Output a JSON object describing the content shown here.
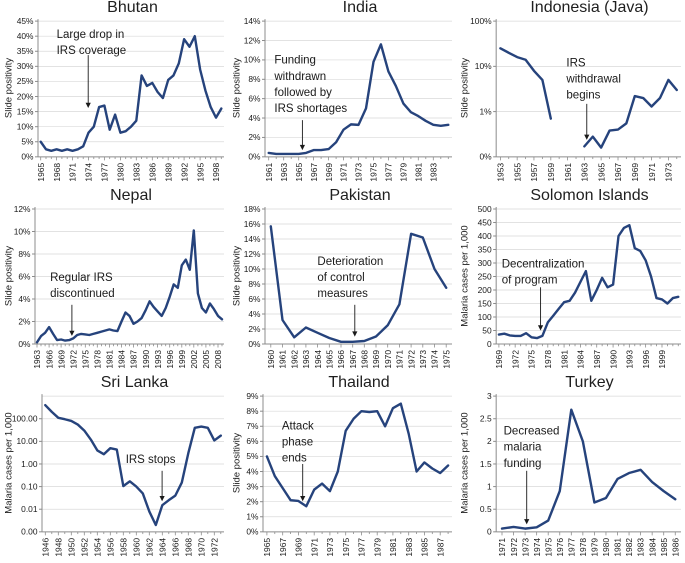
{
  "page": {
    "background": "#ffffff",
    "description": "3x3 grid of malaria resurgence line charts by country"
  },
  "colors": {
    "line": "#26437c",
    "grid": "#d9d9d9",
    "axis": "#8c8c8c",
    "text": "#1a1a1a"
  },
  "chart_data": [
    {
      "type": "line",
      "title": "Bhutan",
      "ylabel": "Slide positivity",
      "yscale": "linear",
      "ymin": 0,
      "ymax": 45,
      "yticks": [
        {
          "v": 0,
          "label": "0%"
        },
        {
          "v": 5,
          "label": "5%"
        },
        {
          "v": 10,
          "label": "10%"
        },
        {
          "v": 15,
          "label": "15%"
        },
        {
          "v": 20,
          "label": "20%"
        },
        {
          "v": 25,
          "label": "25%"
        },
        {
          "v": 30,
          "label": "30%"
        },
        {
          "v": 35,
          "label": "35%"
        },
        {
          "v": 40,
          "label": "40%"
        },
        {
          "v": 45,
          "label": "45%"
        }
      ],
      "x0": 1965,
      "values": [
        5,
        2.5,
        2,
        2.5,
        2,
        2.5,
        2,
        2.5,
        3.5,
        8,
        10,
        16.5,
        17,
        9,
        14,
        8,
        8.5,
        10,
        12,
        27,
        23.5,
        24.5,
        21.5,
        19.5,
        25.5,
        27,
        31,
        39,
        36.5,
        40,
        29,
        22,
        16.5,
        13,
        16
      ],
      "xticks": [
        1965,
        1968,
        1971,
        1974,
        1977,
        1980,
        1983,
        1986,
        1989,
        1992,
        1995,
        1998
      ],
      "annotation": {
        "lines": [
          "Large drop in",
          "IRS coverage"
        ],
        "tx": 0.1,
        "ty": 0.05,
        "ax": 0.27,
        "ay1": 0.25,
        "ay2": 0.64
      }
    },
    {
      "type": "line",
      "title": "India",
      "ylabel": "Slide positivity",
      "yscale": "linear",
      "ymin": 0,
      "ymax": 14,
      "yticks": [
        {
          "v": 0,
          "label": "0%"
        },
        {
          "v": 2,
          "label": "2%"
        },
        {
          "v": 4,
          "label": "4%"
        },
        {
          "v": 6,
          "label": "6%"
        },
        {
          "v": 8,
          "label": "8%"
        },
        {
          "v": 10,
          "label": "10%"
        },
        {
          "v": 12,
          "label": "12%"
        },
        {
          "v": 14,
          "label": "14%"
        }
      ],
      "x0": 1961,
      "values": [
        0.4,
        0.3,
        0.3,
        0.3,
        0.3,
        0.4,
        0.7,
        0.7,
        0.8,
        1.5,
        2.8,
        3.35,
        3.3,
        5,
        9.8,
        11.6,
        8.8,
        7.3,
        5.5,
        4.6,
        4.2,
        3.7,
        3.3,
        3.2,
        3.3
      ],
      "xticks": [
        1961,
        1963,
        1965,
        1967,
        1969,
        1971,
        1973,
        1975,
        1977,
        1979,
        1981,
        1983
      ],
      "annotation": {
        "lines": [
          "Funding",
          "withdrawn",
          "followed by",
          "IRS shortages"
        ],
        "tx": 0.05,
        "ty": 0.24,
        "ax": 0.2,
        "ay1": 0.73,
        "ay2": 0.95
      }
    },
    {
      "type": "line",
      "title": "Indonesia (Java)",
      "ylabel": "Slide positivity",
      "yscale": "log",
      "ymin": 0.1,
      "ymax": 100,
      "yticks": [
        {
          "v": 0.1,
          "label": "0%"
        },
        {
          "v": 1,
          "label": "1%"
        },
        {
          "v": 10,
          "label": "10%"
        },
        {
          "v": 100,
          "label": "100%"
        }
      ],
      "x0": 1953,
      "values": [
        25,
        20,
        16,
        14,
        8,
        5,
        0.7,
        null,
        null,
        null,
        0.17,
        0.28,
        0.16,
        0.38,
        0.4,
        0.55,
        2.2,
        2,
        1.3,
        2,
        5,
        3
      ],
      "xticks": [
        1953,
        1955,
        1957,
        1959,
        1961,
        1963,
        1965,
        1967,
        1969,
        1971,
        1973
      ],
      "annotation": {
        "lines": [
          "IRS",
          "withdrawal",
          "begins"
        ],
        "tx": 0.38,
        "ty": 0.26,
        "ax": 0.49,
        "ay1": 0.61,
        "ay2": 0.875
      }
    },
    {
      "type": "line",
      "title": "Nepal",
      "ylabel": "Slide positivity",
      "yscale": "linear",
      "ymin": 0,
      "ymax": 12,
      "yticks": [
        {
          "v": 0,
          "label": "0%"
        },
        {
          "v": 2,
          "label": "2%"
        },
        {
          "v": 4,
          "label": "4%"
        },
        {
          "v": 6,
          "label": "6%"
        },
        {
          "v": 8,
          "label": "8%"
        },
        {
          "v": 10,
          "label": "10%"
        },
        {
          "v": 12,
          "label": "12%"
        }
      ],
      "x0": 1963,
      "values": [
        0.15,
        0.7,
        1,
        1.5,
        0.9,
        0.35,
        0.4,
        0.3,
        0.35,
        0.5,
        0.8,
        0.9,
        0.85,
        0.8,
        0.9,
        1,
        1.1,
        1.2,
        1.3,
        1.2,
        1.15,
        2,
        2.8,
        2.5,
        1.8,
        2,
        2.3,
        3,
        3.8,
        3.3,
        2.9,
        2.5,
        3.2,
        4.2,
        5.3,
        5,
        7,
        7.5,
        6.6,
        10.1,
        4.5,
        3.2,
        2.8,
        3.6,
        3.1,
        2.5,
        2.2
      ],
      "xticks": [
        1963,
        1966,
        1969,
        1972,
        1975,
        1978,
        1981,
        1984,
        1987,
        1990,
        1993,
        1996,
        1999,
        2002,
        2005,
        2008
      ],
      "annotation": {
        "lines": [
          "Regular IRS",
          "discontinued"
        ],
        "tx": 0.08,
        "ty": 0.46,
        "ax": 0.195,
        "ay1": 0.71,
        "ay2": 0.94
      }
    },
    {
      "type": "line",
      "title": "Pakistan",
      "ylabel": "Slide positivity",
      "yscale": "linear",
      "ymin": 0,
      "ymax": 18,
      "yticks": [
        {
          "v": 0,
          "label": "0%"
        },
        {
          "v": 2,
          "label": "2%"
        },
        {
          "v": 4,
          "label": "4%"
        },
        {
          "v": 6,
          "label": "6%"
        },
        {
          "v": 8,
          "label": "8%"
        },
        {
          "v": 10,
          "label": "10%"
        },
        {
          "v": 12,
          "label": "12%"
        },
        {
          "v": 14,
          "label": "14%"
        },
        {
          "v": 16,
          "label": "16%"
        },
        {
          "v": 18,
          "label": "18%"
        }
      ],
      "x0": 1960,
      "values": [
        15.7,
        3.2,
        0.9,
        2.2,
        1.5,
        0.8,
        0.3,
        0.3,
        0.4,
        1,
        2.5,
        5.3,
        14.7,
        14.2,
        10,
        7.5
      ],
      "xticks": [
        1960,
        1961,
        1962,
        1963,
        1964,
        1965,
        1966,
        1967,
        1968,
        1969,
        1970,
        1971,
        1972,
        1973,
        1974,
        1975
      ],
      "annotation": {
        "lines": [
          "Deterioration",
          "of control",
          "measures"
        ],
        "tx": 0.28,
        "ty": 0.34,
        "ax": 0.48,
        "ay1": 0.71,
        "ay2": 0.945
      }
    },
    {
      "type": "line",
      "title": "Solomon Islands",
      "ylabel": "Malaria cases per 1,000",
      "yscale": "linear",
      "ymin": 0,
      "ymax": 500,
      "yticks": [
        {
          "v": 0,
          "label": "0"
        },
        {
          "v": 50,
          "label": "50"
        },
        {
          "v": 100,
          "label": "100"
        },
        {
          "v": 150,
          "label": "150"
        },
        {
          "v": 200,
          "label": "200"
        },
        {
          "v": 250,
          "label": "250"
        },
        {
          "v": 300,
          "label": "300"
        },
        {
          "v": 350,
          "label": "350"
        },
        {
          "v": 400,
          "label": "400"
        },
        {
          "v": 450,
          "label": "450"
        },
        {
          "v": 500,
          "label": "500"
        }
      ],
      "x0": 1969,
      "values": [
        35,
        38,
        32,
        30,
        30,
        40,
        25,
        22,
        30,
        80,
        105,
        130,
        155,
        160,
        190,
        230,
        270,
        160,
        200,
        245,
        210,
        220,
        400,
        430,
        440,
        355,
        345,
        310,
        250,
        170,
        165,
        150,
        170,
        175
      ],
      "xticks": [
        1969,
        1972,
        1975,
        1978,
        1981,
        1984,
        1987,
        1990,
        1993,
        1996,
        1999
      ],
      "annotation": {
        "lines": [
          "Decentralization",
          "of program"
        ],
        "tx": 0.03,
        "ty": 0.36,
        "ax": 0.24,
        "ay1": 0.58,
        "ay2": 0.9
      }
    },
    {
      "type": "line",
      "title": "Sri Lanka",
      "ylabel": "Malaria cases per 1,000",
      "yscale": "log",
      "ymin": 0.001,
      "ymax": 1000,
      "yticks": [
        {
          "v": 0.001,
          "label": "0.00"
        },
        {
          "v": 0.01,
          "label": "0.01"
        },
        {
          "v": 0.1,
          "label": "0.10"
        },
        {
          "v": 1,
          "label": "1.00"
        },
        {
          "v": 10,
          "label": "10.00"
        },
        {
          "v": 100,
          "label": "100.00"
        }
      ],
      "x0": 1946,
      "values": [
        400,
        200,
        110,
        95,
        80,
        55,
        30,
        12,
        4,
        2.7,
        5,
        4.3,
        0.105,
        0.17,
        0.1,
        0.05,
        0.008,
        0.002,
        0.015,
        0.025,
        0.04,
        0.15,
        3,
        40,
        45,
        40,
        11,
        18
      ],
      "xticks": [
        1946,
        1948,
        1950,
        1952,
        1954,
        1956,
        1958,
        1960,
        1962,
        1964,
        1966,
        1968,
        1970,
        1972
      ],
      "annotation": {
        "lines": [
          "IRS stops"
        ],
        "tx": 0.46,
        "ty": 0.42,
        "ax": 0.66,
        "ay1": 0.55,
        "ay2": 0.775
      }
    },
    {
      "type": "line",
      "title": "Thailand",
      "ylabel": "Slide positivity",
      "yscale": "linear",
      "ymin": 0,
      "ymax": 9,
      "yticks": [
        {
          "v": 0,
          "label": "0%"
        },
        {
          "v": 1,
          "label": "1%"
        },
        {
          "v": 2,
          "label": "2%"
        },
        {
          "v": 3,
          "label": "3%"
        },
        {
          "v": 4,
          "label": "4%"
        },
        {
          "v": 5,
          "label": "5%"
        },
        {
          "v": 6,
          "label": "6%"
        },
        {
          "v": 7,
          "label": "7%"
        },
        {
          "v": 8,
          "label": "8%"
        },
        {
          "v": 9,
          "label": "9%"
        }
      ],
      "x0": 1965,
      "values": [
        5,
        3.7,
        2.9,
        2.1,
        2.05,
        1.7,
        2.8,
        3.2,
        2.7,
        4,
        6.7,
        7.5,
        8,
        7.95,
        8,
        7,
        8.2,
        8.5,
        6.5,
        4,
        4.6,
        4.2,
        3.9,
        4.4
      ],
      "xticks": [
        1965,
        1967,
        1969,
        1971,
        1973,
        1975,
        1977,
        1979,
        1981,
        1983,
        1985,
        1987
      ],
      "annotation": {
        "lines": [
          "Attack",
          "phase",
          "ends"
        ],
        "tx": 0.1,
        "ty": 0.17,
        "ax": 0.21,
        "ay1": 0.5,
        "ay2": 0.775
      }
    },
    {
      "type": "line",
      "title": "Turkey",
      "ylabel": "Malaria cases per 1,000",
      "yscale": "linear",
      "ymin": 0,
      "ymax": 3,
      "yticks": [
        {
          "v": 0,
          "label": "0"
        },
        {
          "v": 0.5,
          "label": "0.5"
        },
        {
          "v": 1,
          "label": "1"
        },
        {
          "v": 1.5,
          "label": "1.5"
        },
        {
          "v": 2,
          "label": "2"
        },
        {
          "v": 2.5,
          "label": "2.5"
        },
        {
          "v": 3,
          "label": "3"
        }
      ],
      "x0": 1971,
      "values": [
        0.07,
        0.11,
        0.07,
        0.1,
        0.25,
        0.9,
        2.7,
        2,
        0.65,
        0.75,
        1.17,
        1.3,
        1.37,
        1.1,
        0.9,
        0.72
      ],
      "xticks": [
        1971,
        1972,
        1973,
        1974,
        1975,
        1976,
        1977,
        1978,
        1979,
        1980,
        1981,
        1982,
        1983,
        1984,
        1985,
        1986
      ],
      "annotation": {
        "lines": [
          "Decreased",
          "malaria",
          "funding"
        ],
        "tx": 0.04,
        "ty": 0.21,
        "ax": 0.165,
        "ay1": 0.55,
        "ay2": 0.945
      }
    }
  ]
}
